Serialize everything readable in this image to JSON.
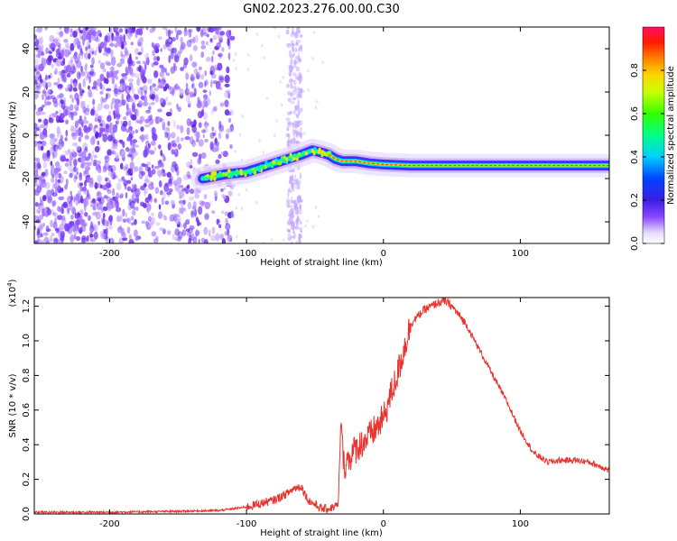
{
  "figure_title": "GN02.2023.276.00.00.C30",
  "chart_data": [
    {
      "type": "heatmap",
      "title": "GN02.2023.276.00.00.C30",
      "xlabel": "Height of straight line (km)",
      "ylabel": "Frequency (Hz)",
      "xlim": [
        -255,
        165
      ],
      "ylim": [
        -50,
        50
      ],
      "x_ticks": [
        -200,
        -100,
        0,
        100
      ],
      "y_ticks": [
        -40,
        -20,
        0,
        20,
        40
      ],
      "grid": false,
      "colorbar": {
        "label": "Normalized spectral amplitude",
        "range": [
          0.0,
          1.0
        ],
        "ticks": [
          0.0,
          0.2,
          0.4,
          0.6,
          0.8
        ],
        "colormap": "rainbow (white-purple-blue-cyan-green-yellow-orange-red-magenta)"
      },
      "ridge": {
        "description": "dominant Doppler frequency track",
        "x": [
          -132,
          -115,
          -100,
          -90,
          -80,
          -70,
          -60,
          -52,
          -45,
          -40,
          -35,
          -30,
          -20,
          -10,
          0,
          20,
          50,
          80,
          110,
          140,
          165
        ],
        "y": [
          -20,
          -18,
          -17,
          -15,
          -13,
          -11,
          -9,
          -7,
          -8,
          -9,
          -11,
          -12,
          -12,
          -13,
          -13.5,
          -14,
          -14,
          -14,
          -14,
          -14,
          -14
        ]
      },
      "noise_region": {
        "x_from": -255,
        "x_to": -110,
        "extra_column_x": [
          -70,
          -60
        ]
      }
    },
    {
      "type": "line",
      "xlabel": "Height of straight line (km)",
      "ylabel": "SNR (10 * v/v)",
      "y_multiplier": "(x10^4)",
      "xlim": [
        -255,
        165
      ],
      "ylim": [
        0,
        1.25
      ],
      "x_ticks": [
        -200,
        -100,
        0,
        100
      ],
      "y_ticks": [
        0.0,
        0.2,
        0.4,
        0.6,
        0.8,
        1.0,
        1.2
      ],
      "grid": false,
      "color": "#e8342e",
      "series": [
        {
          "x": [
            -255,
            -200,
            -150,
            -120,
            -100,
            -90,
            -80,
            -70,
            -65,
            -60,
            -55,
            -45,
            -40,
            -33,
            -31,
            -29,
            -20,
            -10,
            0,
            5,
            10,
            15,
            20,
            30,
            40,
            45,
            50,
            60,
            70,
            80,
            90,
            100,
            110,
            120,
            130,
            140,
            150,
            160,
            165
          ],
          "y": [
            0.01,
            0.01,
            0.015,
            0.02,
            0.04,
            0.06,
            0.08,
            0.12,
            0.15,
            0.16,
            0.08,
            0.03,
            0.03,
            0.05,
            0.55,
            0.28,
            0.38,
            0.45,
            0.55,
            0.68,
            0.8,
            0.95,
            1.1,
            1.18,
            1.22,
            1.23,
            1.2,
            1.1,
            0.95,
            0.8,
            0.65,
            0.48,
            0.35,
            0.3,
            0.31,
            0.31,
            0.3,
            0.27,
            0.25
          ]
        }
      ]
    }
  ]
}
